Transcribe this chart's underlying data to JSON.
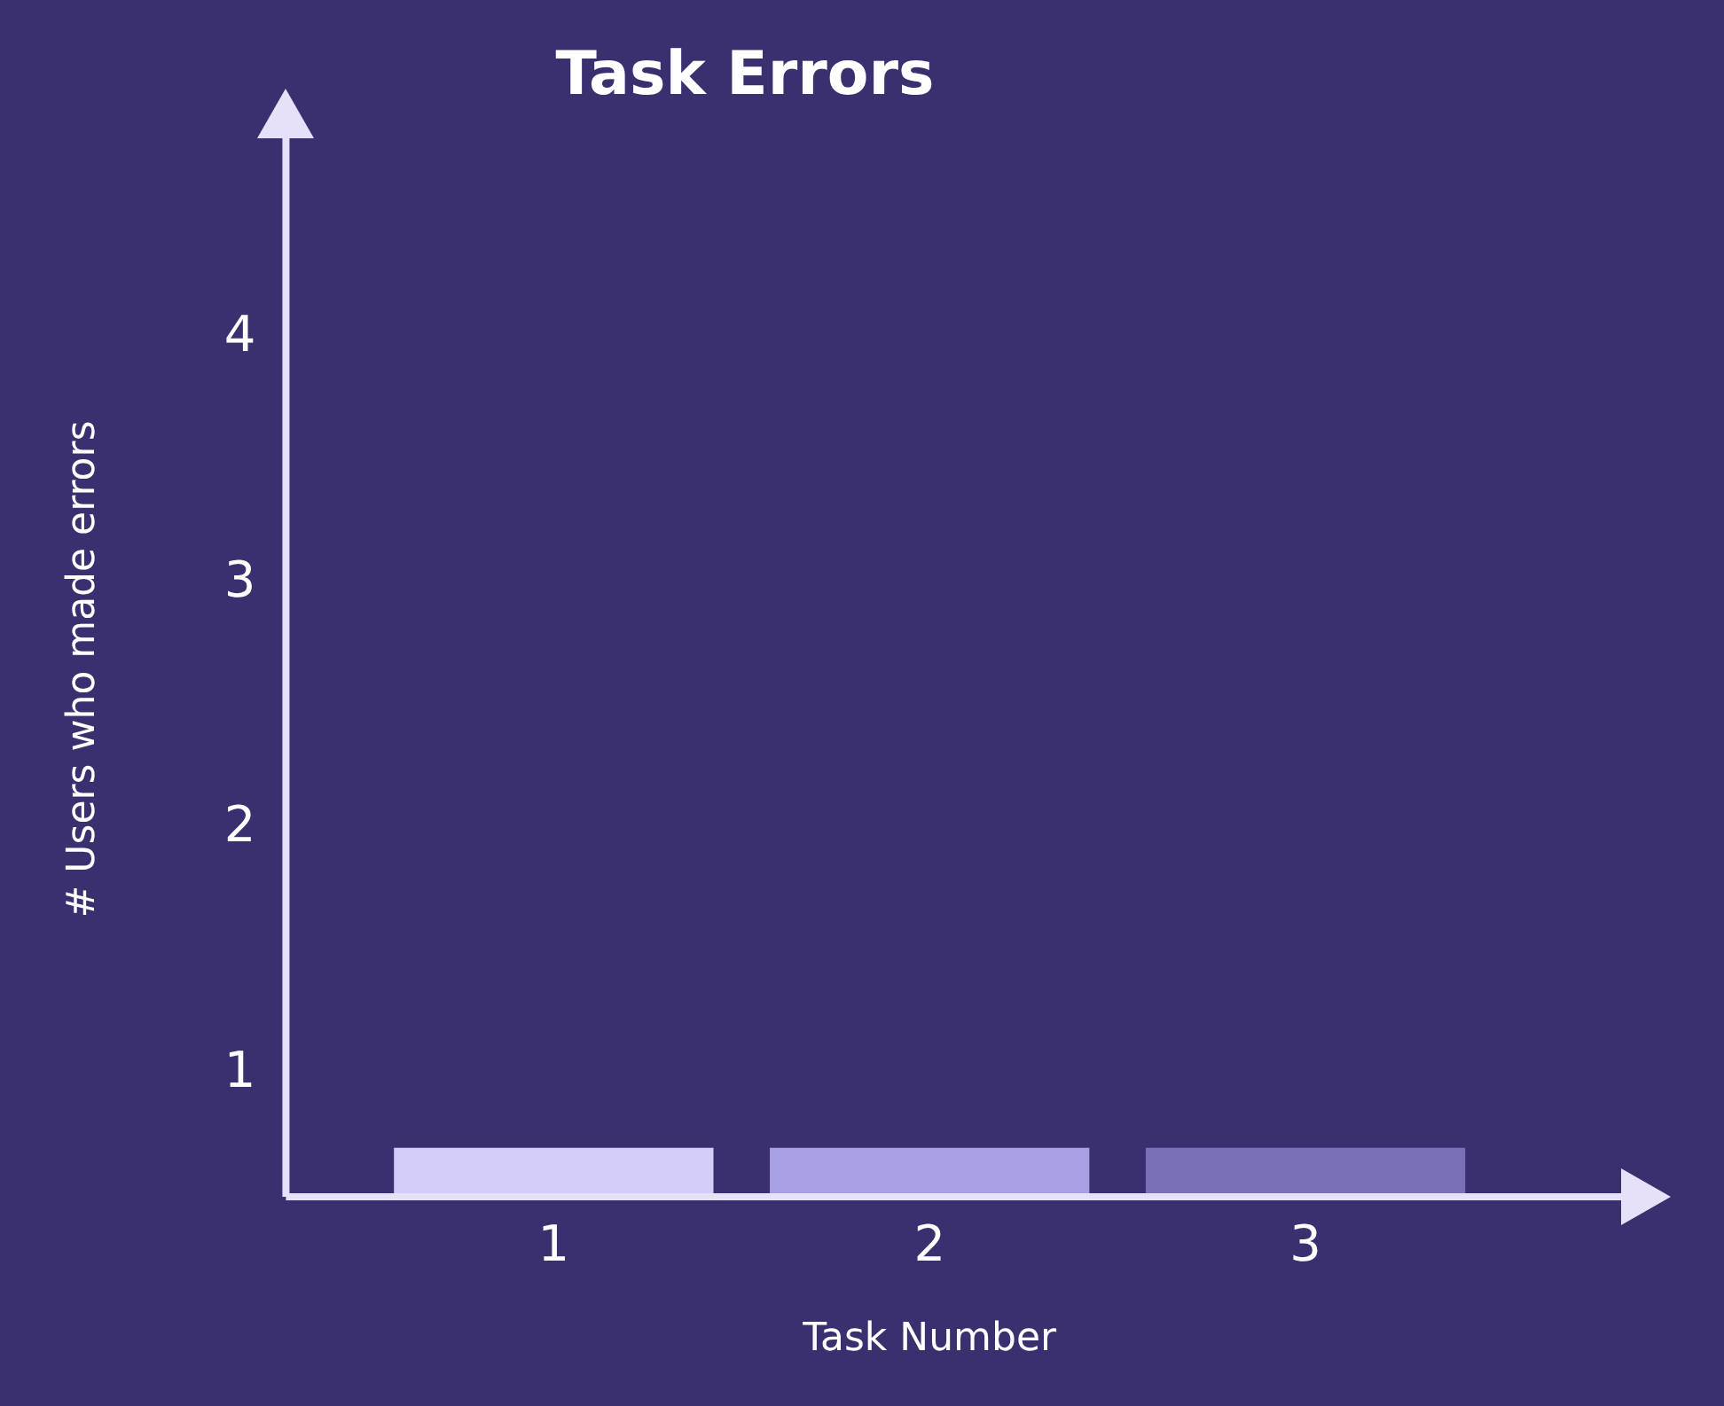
{
  "chart_data": {
    "type": "bar",
    "title": "Task Errors",
    "xlabel": "Task Number",
    "ylabel": "# Users who made errors",
    "categories": [
      "1",
      "2",
      "3"
    ],
    "values": [
      0.7,
      0.7,
      0.7
    ],
    "colors": [
      "#d4cdf9",
      "#a7a0e3",
      "#7a70b8"
    ],
    "ylim": [
      0.5,
      4.8
    ],
    "yticks": [
      1,
      2,
      3,
      4
    ],
    "grid": false,
    "legend": false
  }
}
